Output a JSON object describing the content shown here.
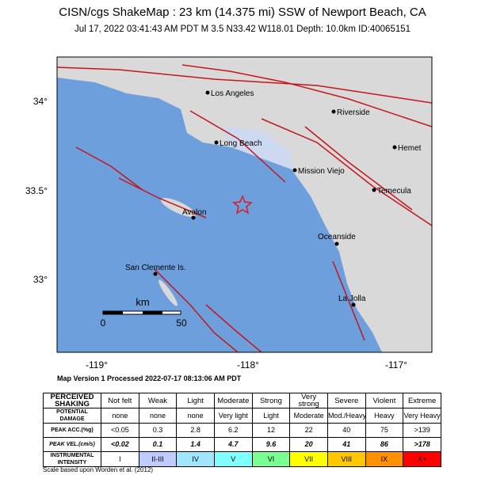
{
  "header": {
    "title": "CISN/cgs ShakeMap : 23 km (14.375 mi) SSW of Newport Beach, CA",
    "subtitle": "Jul 17, 2022 03:41:43 AM PDT   M 3.5   N33.42 W118.01   Depth: 10.0km   ID:40065151"
  },
  "map": {
    "lat_labels": [
      "34°",
      "33.5°",
      "33°"
    ],
    "lon_labels": [
      "-119°",
      "-118°",
      "-117°"
    ],
    "places": [
      "Los Angeles",
      "Riverside",
      "Long Beach",
      "Hemet",
      "Mission Viejo",
      "Temecula",
      "Avalon",
      "Oceanside",
      "San Clemente Is.",
      "La Jolla"
    ],
    "scale": {
      "unit": "km",
      "labels": [
        "0",
        "50"
      ]
    }
  },
  "version": "Map Version 1 Processed 2022-07-17 08:13:06 AM PDT",
  "table": {
    "rows": [
      [
        "PERCEIVED SHAKING",
        "Not felt",
        "Weak",
        "Light",
        "Moderate",
        "Strong",
        "Very strong",
        "Severe",
        "Violent",
        "Extreme"
      ],
      [
        "POTENTIAL DAMAGE",
        "none",
        "none",
        "none",
        "Very light",
        "Light",
        "Moderate",
        "Mod./Heavy",
        "Heavy",
        "Very Heavy"
      ],
      [
        "PEAK ACC.(%g)",
        "<0.05",
        "0.3",
        "2.8",
        "6.2",
        "12",
        "22",
        "40",
        "75",
        ">139"
      ],
      [
        "PEAK VEL.(cm/s)",
        "<0.02",
        "0.1",
        "1.4",
        "4.7",
        "9.6",
        "20",
        "41",
        "86",
        ">178"
      ],
      [
        "INSTRUMENTAL INTENSITY",
        "I",
        "II-III",
        "IV",
        "V",
        "VI",
        "VII",
        "VIII",
        "IX",
        "X+"
      ]
    ]
  },
  "footnote": "Scale based upon Worden et al. (2012)"
}
